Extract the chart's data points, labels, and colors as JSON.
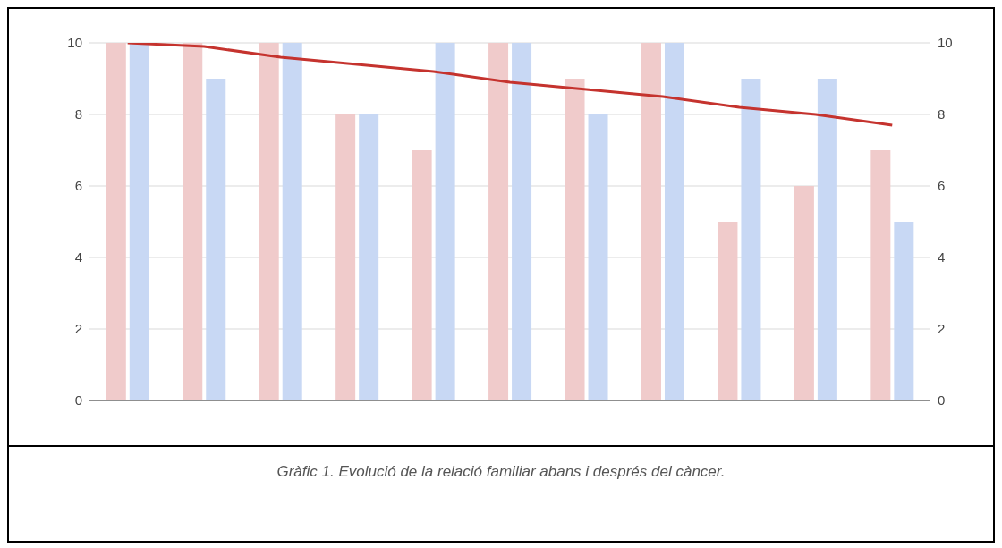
{
  "chart_data": {
    "type": "bar",
    "categories": [
      null,
      null,
      null,
      null,
      null,
      null,
      null,
      null,
      null,
      null,
      null
    ],
    "series": [
      {
        "color": "#f0cbcb",
        "values": [
          10,
          10,
          10,
          8,
          7,
          10,
          9,
          10,
          5,
          6,
          7
        ]
      },
      {
        "color": "#c8d8f4",
        "values": [
          10,
          9,
          10,
          8,
          10,
          10,
          8,
          10,
          9,
          9,
          5
        ]
      },
      {
        "type": "line",
        "color": "#c5332e",
        "values": [
          10.0,
          9.9,
          9.6,
          9.4,
          9.2,
          8.9,
          8.7,
          8.5,
          8.2,
          8.0,
          7.7
        ]
      }
    ],
    "ylim": [
      0,
      10
    ],
    "yticks": [
      0,
      2,
      4,
      6,
      8,
      10
    ],
    "y2lim": [
      0,
      10
    ],
    "y2ticks": [
      0,
      2,
      4,
      6,
      8,
      10
    ],
    "grid": "y",
    "legend": false,
    "annotations": [
      "Gràfic 1. Evolució de la relació familiar abans i després del càncer."
    ]
  }
}
